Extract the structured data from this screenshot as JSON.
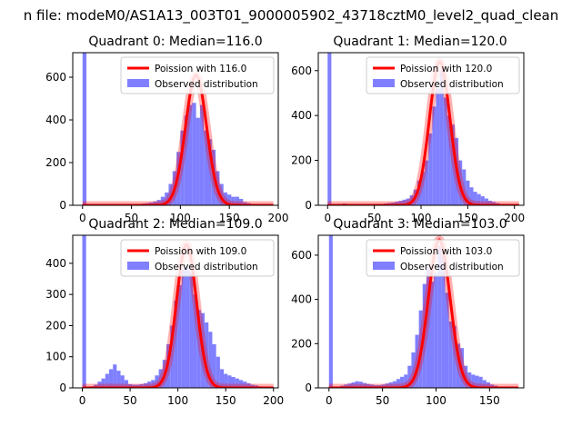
{
  "figure": {
    "suptitle": "n file: modeM0/AS1A13_003T01_9000005902_43718cztM0_level2_quad_clean"
  },
  "colors": {
    "histogram": "#7f7fff",
    "fit_line": "#ff0000",
    "axes": "#000000"
  },
  "chart_data": [
    {
      "type": "bar",
      "title": "Quadrant 0: Median=116.0",
      "xlabel": "",
      "ylabel": "",
      "xlim": [
        -10,
        200
      ],
      "ylim": [
        0,
        715
      ],
      "xticks": [
        0,
        50,
        100,
        150,
        200
      ],
      "xtick_labels": [
        "0",
        "50",
        "100",
        "150",
        "200"
      ],
      "yticks": [
        0,
        200,
        400,
        600
      ],
      "ytick_labels": [
        "0",
        "200",
        "400",
        "600"
      ],
      "legend": [
        "Poission with 116.0",
        "Observed distribution"
      ],
      "legend_position": "top-right",
      "bin_width": 4,
      "bin_edges": [
        0,
        4,
        8,
        12,
        16,
        20,
        24,
        28,
        32,
        36,
        40,
        44,
        48,
        52,
        56,
        60,
        64,
        68,
        72,
        76,
        80,
        84,
        88,
        92,
        96,
        100,
        104,
        108,
        112,
        116,
        120,
        124,
        128,
        132,
        136,
        140,
        144,
        148,
        152,
        156,
        160,
        164,
        168,
        172,
        176,
        180,
        184,
        188,
        192
      ],
      "values": [
        715,
        2,
        2,
        2,
        2,
        2,
        2,
        2,
        2,
        2,
        3,
        3,
        4,
        5,
        6,
        8,
        10,
        13,
        18,
        25,
        40,
        60,
        100,
        160,
        250,
        350,
        420,
        470,
        480,
        410,
        470,
        350,
        310,
        260,
        160,
        100,
        60,
        50,
        40,
        40,
        30,
        15,
        10,
        5,
        2,
        2,
        1,
        1,
        1
      ],
      "fit": {
        "label": "Poission with 116.0",
        "mean": 116.0,
        "peak": 610
      }
    },
    {
      "type": "bar",
      "title": "Quadrant 1: Median=120.0",
      "xlabel": "",
      "ylabel": "",
      "xlim": [
        -10,
        210
      ],
      "ylim": [
        0,
        680
      ],
      "xticks": [
        0,
        50,
        100,
        150,
        200
      ],
      "xtick_labels": [
        "0",
        "50",
        "100",
        "150",
        "200"
      ],
      "yticks": [
        0,
        200,
        400,
        600
      ],
      "ytick_labels": [
        "0",
        "200",
        "400",
        "600"
      ],
      "legend": [
        "Poission with 120.0",
        "Observed distribution"
      ],
      "legend_position": "top-right",
      "bin_width": 4,
      "bin_edges": [
        0,
        4,
        8,
        12,
        16,
        20,
        24,
        28,
        32,
        36,
        40,
        44,
        48,
        52,
        56,
        60,
        64,
        68,
        72,
        76,
        80,
        84,
        88,
        92,
        96,
        100,
        104,
        108,
        112,
        116,
        120,
        124,
        128,
        132,
        136,
        140,
        144,
        148,
        152,
        156,
        160,
        164,
        168,
        172,
        176,
        180,
        184,
        188,
        192,
        196
      ],
      "values": [
        680,
        2,
        2,
        5,
        8,
        5,
        3,
        3,
        3,
        4,
        5,
        5,
        5,
        6,
        6,
        8,
        10,
        12,
        16,
        20,
        25,
        30,
        45,
        70,
        110,
        150,
        200,
        320,
        440,
        520,
        600,
        480,
        400,
        360,
        300,
        200,
        160,
        110,
        80,
        60,
        50,
        40,
        30,
        20,
        15,
        10,
        5,
        3,
        2,
        1
      ],
      "fit": {
        "label": "Poission with 120.0",
        "mean": 120.0,
        "peak": 640
      }
    },
    {
      "type": "bar",
      "title": "Quadrant 2: Median=109.0",
      "xlabel": "",
      "ylabel": "",
      "xlim": [
        -10,
        205
      ],
      "ylim": [
        0,
        490
      ],
      "xticks": [
        0,
        50,
        100,
        150,
        200
      ],
      "xtick_labels": [
        "0",
        "50",
        "100",
        "150",
        "200"
      ],
      "yticks": [
        0,
        100,
        200,
        300,
        400
      ],
      "ytick_labels": [
        "0",
        "100",
        "200",
        "300",
        "400"
      ],
      "legend": [
        "Poission with 109.0",
        "Observed distribution"
      ],
      "legend_position": "top-right",
      "bin_width": 4,
      "bin_edges": [
        0,
        4,
        8,
        12,
        16,
        20,
        24,
        28,
        32,
        36,
        40,
        44,
        48,
        52,
        56,
        60,
        64,
        68,
        72,
        76,
        80,
        84,
        88,
        92,
        96,
        100,
        104,
        108,
        112,
        116,
        120,
        124,
        128,
        132,
        136,
        140,
        144,
        148,
        152,
        156,
        160,
        164,
        168,
        172,
        176,
        180,
        184,
        188,
        192
      ],
      "values": [
        490,
        3,
        5,
        10,
        20,
        30,
        45,
        60,
        75,
        55,
        40,
        25,
        12,
        10,
        10,
        12,
        15,
        20,
        25,
        40,
        60,
        90,
        140,
        200,
        280,
        330,
        380,
        390,
        370,
        300,
        250,
        240,
        210,
        180,
        140,
        100,
        60,
        45,
        40,
        35,
        30,
        25,
        20,
        15,
        10,
        8,
        5,
        3,
        2
      ],
      "fit": {
        "label": "Poission with 109.0",
        "mean": 109.0,
        "peak": 460
      }
    },
    {
      "type": "bar",
      "title": "Quadrant 3: Median=103.0",
      "xlabel": "",
      "ylabel": "",
      "xlim": [
        -10,
        182
      ],
      "ylim": [
        0,
        690
      ],
      "xticks": [
        0,
        50,
        100,
        150
      ],
      "xtick_labels": [
        "0",
        "50",
        "100",
        "150"
      ],
      "yticks": [
        0,
        200,
        400,
        600
      ],
      "ytick_labels": [
        "0",
        "200",
        "400",
        "600"
      ],
      "legend": [
        "Poission with 103.0",
        "Observed distribution"
      ],
      "legend_position": "top-right",
      "bin_width": 3.5,
      "bin_edges": [
        0,
        3.5,
        7,
        10.5,
        14,
        17.5,
        21,
        24.5,
        28,
        31.5,
        35,
        38.5,
        42,
        45.5,
        49,
        52.5,
        56,
        59.5,
        63,
        66.5,
        70,
        73.5,
        77,
        80.5,
        84,
        87.5,
        91,
        94.5,
        98,
        101.5,
        105,
        108.5,
        112,
        115.5,
        119,
        122.5,
        126,
        129.5,
        133,
        136.5,
        140,
        143.5,
        147,
        150.5,
        154,
        157.5,
        161,
        164.5
      ],
      "values": [
        690,
        4,
        6,
        10,
        15,
        20,
        25,
        30,
        28,
        22,
        18,
        15,
        12,
        12,
        15,
        20,
        25,
        30,
        40,
        50,
        60,
        100,
        160,
        240,
        350,
        470,
        550,
        480,
        520,
        640,
        600,
        430,
        300,
        280,
        200,
        180,
        100,
        70,
        60,
        55,
        50,
        35,
        25,
        15,
        10,
        5,
        3,
        2
      ],
      "fit": {
        "label": "Poission with 103.0",
        "mean": 103.0,
        "peak": 670
      }
    }
  ]
}
